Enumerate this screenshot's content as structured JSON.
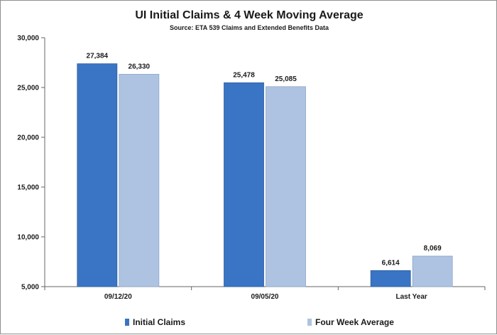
{
  "chart_data": {
    "type": "bar",
    "title": "UI Initial Claims &  4 Week Moving Average",
    "subtitle": "Source: ETA 539 Claims and Extended Benefits Data",
    "categories": [
      "09/12/20",
      "09/05/20",
      "Last Year"
    ],
    "series": [
      {
        "name": "Initial Claims",
        "values": [
          27384,
          25478,
          6614
        ],
        "color": "#3a74c4"
      },
      {
        "name": "Four Week Average",
        "values": [
          26330,
          25085,
          8069
        ],
        "color": "#aec3e1"
      }
    ],
    "data_labels": [
      [
        "27,384",
        "25,478",
        "6,614"
      ],
      [
        "26,330",
        "25,085",
        "8,069"
      ]
    ],
    "ylim": [
      5000,
      30000
    ],
    "yticks": [
      5000,
      10000,
      15000,
      20000,
      25000,
      30000
    ],
    "ytick_labels": [
      "5,000",
      "10,000",
      "15,000",
      "20,000",
      "25,000",
      "30,000"
    ],
    "xlabel": "",
    "ylabel": "",
    "grid": false,
    "legend_position": "bottom"
  }
}
